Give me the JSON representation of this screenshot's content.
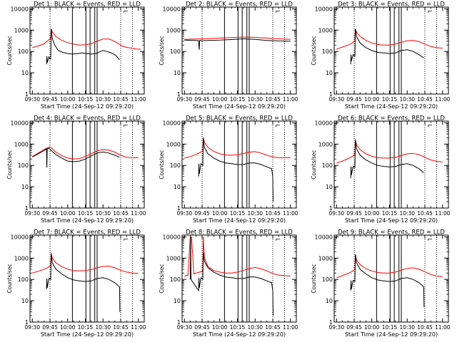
{
  "colors": {
    "events": "#000000",
    "lld": "#ff0000",
    "axis": "#000000",
    "background": "#ffffff"
  },
  "shared": {
    "ylabel": "Counts/sec",
    "xlabel": "Start Time (24-Sep-12 09:29:20)",
    "x_tick_labels": [
      "09:30",
      "09:45",
      "10:00",
      "10:15",
      "10:30",
      "10:45",
      "11:00"
    ],
    "x_tick_minutes": [
      0,
      15,
      30,
      45,
      60,
      75,
      90
    ],
    "y_tick_labels": [
      "1",
      "10",
      "100",
      "1000",
      "10000"
    ],
    "y_tick_values": [
      1,
      10,
      100,
      1000,
      10000
    ],
    "dotted_vlines_minutes": [
      15,
      75,
      85
    ],
    "solid_vlines_minutes": [
      34,
      45.5,
      49,
      53,
      55
    ],
    "corner_mark": "⌐"
  },
  "chart_data": [
    {
      "type": "line",
      "title": "Det 1: BLACK = Events, RED = LLD",
      "xlim": [
        -2,
        95
      ],
      "ylim": [
        1,
        12000
      ],
      "yscale": "log",
      "x_unit": "minutes since 09:30",
      "events": {
        "x": [
          12,
          12.3,
          12.6,
          14,
          15,
          15.6,
          16,
          17,
          19,
          22,
          26,
          30,
          34,
          38,
          42,
          46,
          50,
          54,
          57,
          60,
          63,
          66,
          70,
          72,
          74
        ],
        "y": [
          25,
          60,
          30,
          55,
          45,
          45,
          1100,
          400,
          200,
          110,
          90,
          80,
          75,
          78,
          85,
          80,
          75,
          80,
          95,
          110,
          100,
          90,
          70,
          55,
          40
        ]
      },
      "lld": {
        "x": [
          0,
          5,
          10,
          12,
          14,
          15.6,
          16,
          17,
          20,
          25,
          30,
          35,
          40,
          45,
          50,
          55,
          60,
          65,
          68,
          72,
          76,
          80,
          85,
          88,
          92
        ],
        "y": [
          150,
          180,
          230,
          280,
          350,
          420,
          1150,
          800,
          500,
          330,
          260,
          220,
          200,
          205,
          230,
          300,
          380,
          380,
          330,
          250,
          180,
          155,
          140,
          130,
          125
        ]
      }
    },
    {
      "type": "line",
      "title": "Det 2: BLACK = Events, RED = LLD",
      "xlim": [
        -2,
        95
      ],
      "ylim": [
        1,
        12000
      ],
      "yscale": "log",
      "x_unit": "minutes since 09:30",
      "events": {
        "x": [
          0,
          10,
          12,
          12.5,
          13,
          15,
          20,
          30,
          40,
          50,
          60,
          70,
          80,
          90
        ],
        "y": [
          340,
          330,
          320,
          120,
          330,
          320,
          330,
          340,
          360,
          390,
          370,
          330,
          310,
          300
        ]
      },
      "lld": {
        "x": [
          0,
          10,
          20,
          30,
          40,
          50,
          60,
          70,
          80,
          90
        ],
        "y": [
          370,
          380,
          400,
          420,
          450,
          470,
          460,
          420,
          390,
          370
        ]
      }
    },
    {
      "type": "line",
      "title": "Det 3: BLACK = Events, RED = LLD",
      "xlim": [
        -2,
        95
      ],
      "ylim": [
        1,
        12000
      ],
      "yscale": "log",
      "x_unit": "minutes since 09:30",
      "events": {
        "x": [
          12,
          12.3,
          12.6,
          14,
          15.6,
          16,
          17,
          20,
          25,
          30,
          35,
          40,
          45,
          50,
          55,
          60,
          65,
          70,
          74
        ],
        "y": [
          25,
          70,
          35,
          70,
          60,
          1100,
          500,
          250,
          150,
          110,
          90,
          85,
          80,
          85,
          110,
          120,
          100,
          70,
          50
        ]
      },
      "lld": {
        "x": [
          0,
          5,
          10,
          14,
          15.6,
          16,
          17,
          20,
          25,
          30,
          35,
          40,
          45,
          50,
          55,
          60,
          65,
          70,
          75,
          80,
          85,
          90
        ],
        "y": [
          130,
          160,
          200,
          260,
          330,
          1150,
          800,
          500,
          330,
          250,
          210,
          200,
          200,
          220,
          270,
          320,
          330,
          290,
          220,
          170,
          150,
          140
        ]
      }
    },
    {
      "type": "line",
      "title": "Det 4: BLACK = Events, RED = LLD",
      "xlim": [
        -2,
        95
      ],
      "ylim": [
        1,
        12000
      ],
      "yscale": "log",
      "x_unit": "minutes since 09:30",
      "events": {
        "x": [
          0,
          5,
          10,
          12,
          12.3,
          12.6,
          14,
          16,
          20,
          25,
          30,
          35,
          40,
          45,
          50,
          55,
          60,
          65,
          70,
          74
        ],
        "y": [
          250,
          350,
          500,
          600,
          80,
          600,
          650,
          500,
          320,
          220,
          160,
          150,
          160,
          200,
          280,
          380,
          430,
          380,
          300,
          240
        ]
      },
      "lld": {
        "x": [
          0,
          5,
          10,
          15,
          20,
          25,
          30,
          35,
          40,
          45,
          50,
          55,
          60,
          65,
          70,
          75,
          80,
          85,
          90
        ],
        "y": [
          260,
          380,
          560,
          750,
          420,
          290,
          220,
          200,
          210,
          260,
          360,
          480,
          560,
          520,
          420,
          300,
          240,
          230,
          230
        ]
      }
    },
    {
      "type": "line",
      "title": "Det 5: BLACK = Events, RED = LLD",
      "xlim": [
        -2,
        95
      ],
      "ylim": [
        1,
        12000
      ],
      "yscale": "log",
      "x_unit": "minutes since 09:30",
      "events": {
        "x": [
          12,
          12.3,
          12.6,
          14,
          15.6,
          16,
          17,
          20,
          25,
          30,
          35,
          40,
          45,
          50,
          55,
          60,
          65,
          70,
          74,
          75,
          75.3
        ],
        "y": [
          30,
          120,
          40,
          120,
          100,
          1800,
          700,
          350,
          220,
          160,
          130,
          120,
          110,
          110,
          130,
          130,
          110,
          85,
          70,
          30,
          2
        ]
      },
      "lld": {
        "x": [
          0,
          5,
          10,
          14,
          15.6,
          16,
          17,
          20,
          25,
          30,
          35,
          40,
          45,
          50,
          55,
          60,
          65,
          70,
          75,
          80,
          85,
          90
        ],
        "y": [
          220,
          260,
          330,
          420,
          500,
          2100,
          1200,
          700,
          450,
          350,
          310,
          300,
          320,
          360,
          420,
          440,
          380,
          300,
          250,
          230,
          230,
          230
        ]
      }
    },
    {
      "type": "line",
      "title": "Det 6: BLACK = Events, RED = LLD",
      "xlim": [
        -2,
        95
      ],
      "ylim": [
        1,
        12000
      ],
      "yscale": "log",
      "x_unit": "minutes since 09:30",
      "events": {
        "x": [
          12,
          12.3,
          12.6,
          14,
          15.6,
          16,
          17,
          20,
          25,
          30,
          35,
          40,
          45,
          50,
          55,
          60,
          65,
          70,
          74
        ],
        "y": [
          25,
          90,
          35,
          90,
          80,
          1500,
          600,
          300,
          180,
          130,
          100,
          90,
          85,
          90,
          110,
          120,
          100,
          70,
          45
        ]
      },
      "lld": {
        "x": [
          0,
          5,
          10,
          14,
          15.6,
          16,
          17,
          20,
          25,
          30,
          35,
          40,
          45,
          50,
          55,
          60,
          65,
          70,
          75,
          80,
          85,
          90
        ],
        "y": [
          130,
          160,
          210,
          280,
          350,
          1700,
          900,
          550,
          350,
          270,
          230,
          220,
          220,
          240,
          290,
          350,
          370,
          320,
          240,
          180,
          155,
          145
        ]
      }
    },
    {
      "type": "line",
      "title": "Det 7: BLACK = Events, RED = LLD",
      "xlim": [
        -2,
        95
      ],
      "ylim": [
        1,
        12000
      ],
      "yscale": "log",
      "x_unit": "minutes since 09:30",
      "events": {
        "x": [
          12,
          12.3,
          12.6,
          14,
          15.6,
          16,
          17,
          20,
          25,
          30,
          35,
          40,
          45,
          50,
          55,
          60,
          65,
          70,
          74,
          74.3
        ],
        "y": [
          35,
          110,
          40,
          110,
          100,
          1500,
          600,
          300,
          180,
          120,
          95,
          85,
          80,
          85,
          110,
          120,
          100,
          70,
          45,
          3
        ]
      },
      "lld": {
        "x": [
          0,
          5,
          10,
          14,
          15.6,
          16,
          17,
          20,
          25,
          30,
          35,
          40,
          45,
          50,
          55,
          60,
          65,
          70,
          75,
          80,
          85,
          90
        ],
        "y": [
          200,
          240,
          300,
          380,
          450,
          1800,
          1000,
          600,
          400,
          300,
          260,
          250,
          260,
          290,
          350,
          410,
          420,
          350,
          270,
          220,
          200,
          190
        ]
      }
    },
    {
      "type": "line",
      "title": "Det 8: BLACK = Events, RED = LLD",
      "xlim": [
        -2,
        95
      ],
      "ylim": [
        1,
        12000
      ],
      "yscale": "log",
      "x_unit": "minutes since 09:30",
      "events": {
        "x": [
          5,
          5.3,
          5.6,
          12,
          12.3,
          12.6,
          14,
          15.6,
          16,
          17,
          20,
          25,
          30,
          35,
          40,
          45,
          50,
          55,
          60,
          65,
          70,
          74,
          75,
          75.3
        ],
        "y": [
          100,
          10000,
          100,
          30,
          120,
          40,
          120,
          100,
          1800,
          700,
          350,
          220,
          160,
          130,
          120,
          110,
          110,
          130,
          130,
          110,
          85,
          70,
          30,
          2
        ]
      },
      "lld": {
        "x": [
          0,
          3,
          5,
          6,
          8,
          10,
          14,
          15.6,
          16,
          17,
          20,
          25,
          30,
          35,
          40,
          45,
          50,
          55,
          60,
          65,
          70,
          75,
          80,
          85,
          90
        ],
        "y": [
          140,
          160,
          10000,
          10000,
          180,
          200,
          230,
          260,
          10000,
          1000,
          400,
          260,
          220,
          200,
          200,
          220,
          260,
          330,
          360,
          320,
          250,
          190,
          160,
          150,
          145
        ]
      }
    },
    {
      "type": "line",
      "title": "Det 9: BLACK = Events, RED = LLD",
      "xlim": [
        -2,
        95
      ],
      "ylim": [
        1,
        12000
      ],
      "yscale": "log",
      "x_unit": "minutes since 09:30",
      "events": {
        "x": [
          12,
          12.3,
          12.6,
          14,
          15.6,
          16,
          17,
          20,
          25,
          30,
          35,
          40,
          45,
          50,
          55,
          60,
          65,
          70,
          74,
          74.3
        ],
        "y": [
          30,
          90,
          35,
          90,
          80,
          1500,
          600,
          300,
          180,
          120,
          95,
          85,
          80,
          85,
          110,
          120,
          100,
          70,
          45,
          5
        ]
      },
      "lld": {
        "x": [
          0,
          5,
          10,
          14,
          15.6,
          16,
          17,
          20,
          25,
          30,
          35,
          40,
          45,
          50,
          55,
          60,
          65,
          70,
          75,
          80,
          85,
          90
        ],
        "y": [
          120,
          150,
          190,
          250,
          320,
          1500,
          800,
          500,
          320,
          250,
          210,
          200,
          200,
          220,
          270,
          330,
          350,
          300,
          230,
          170,
          145,
          135
        ]
      }
    }
  ]
}
